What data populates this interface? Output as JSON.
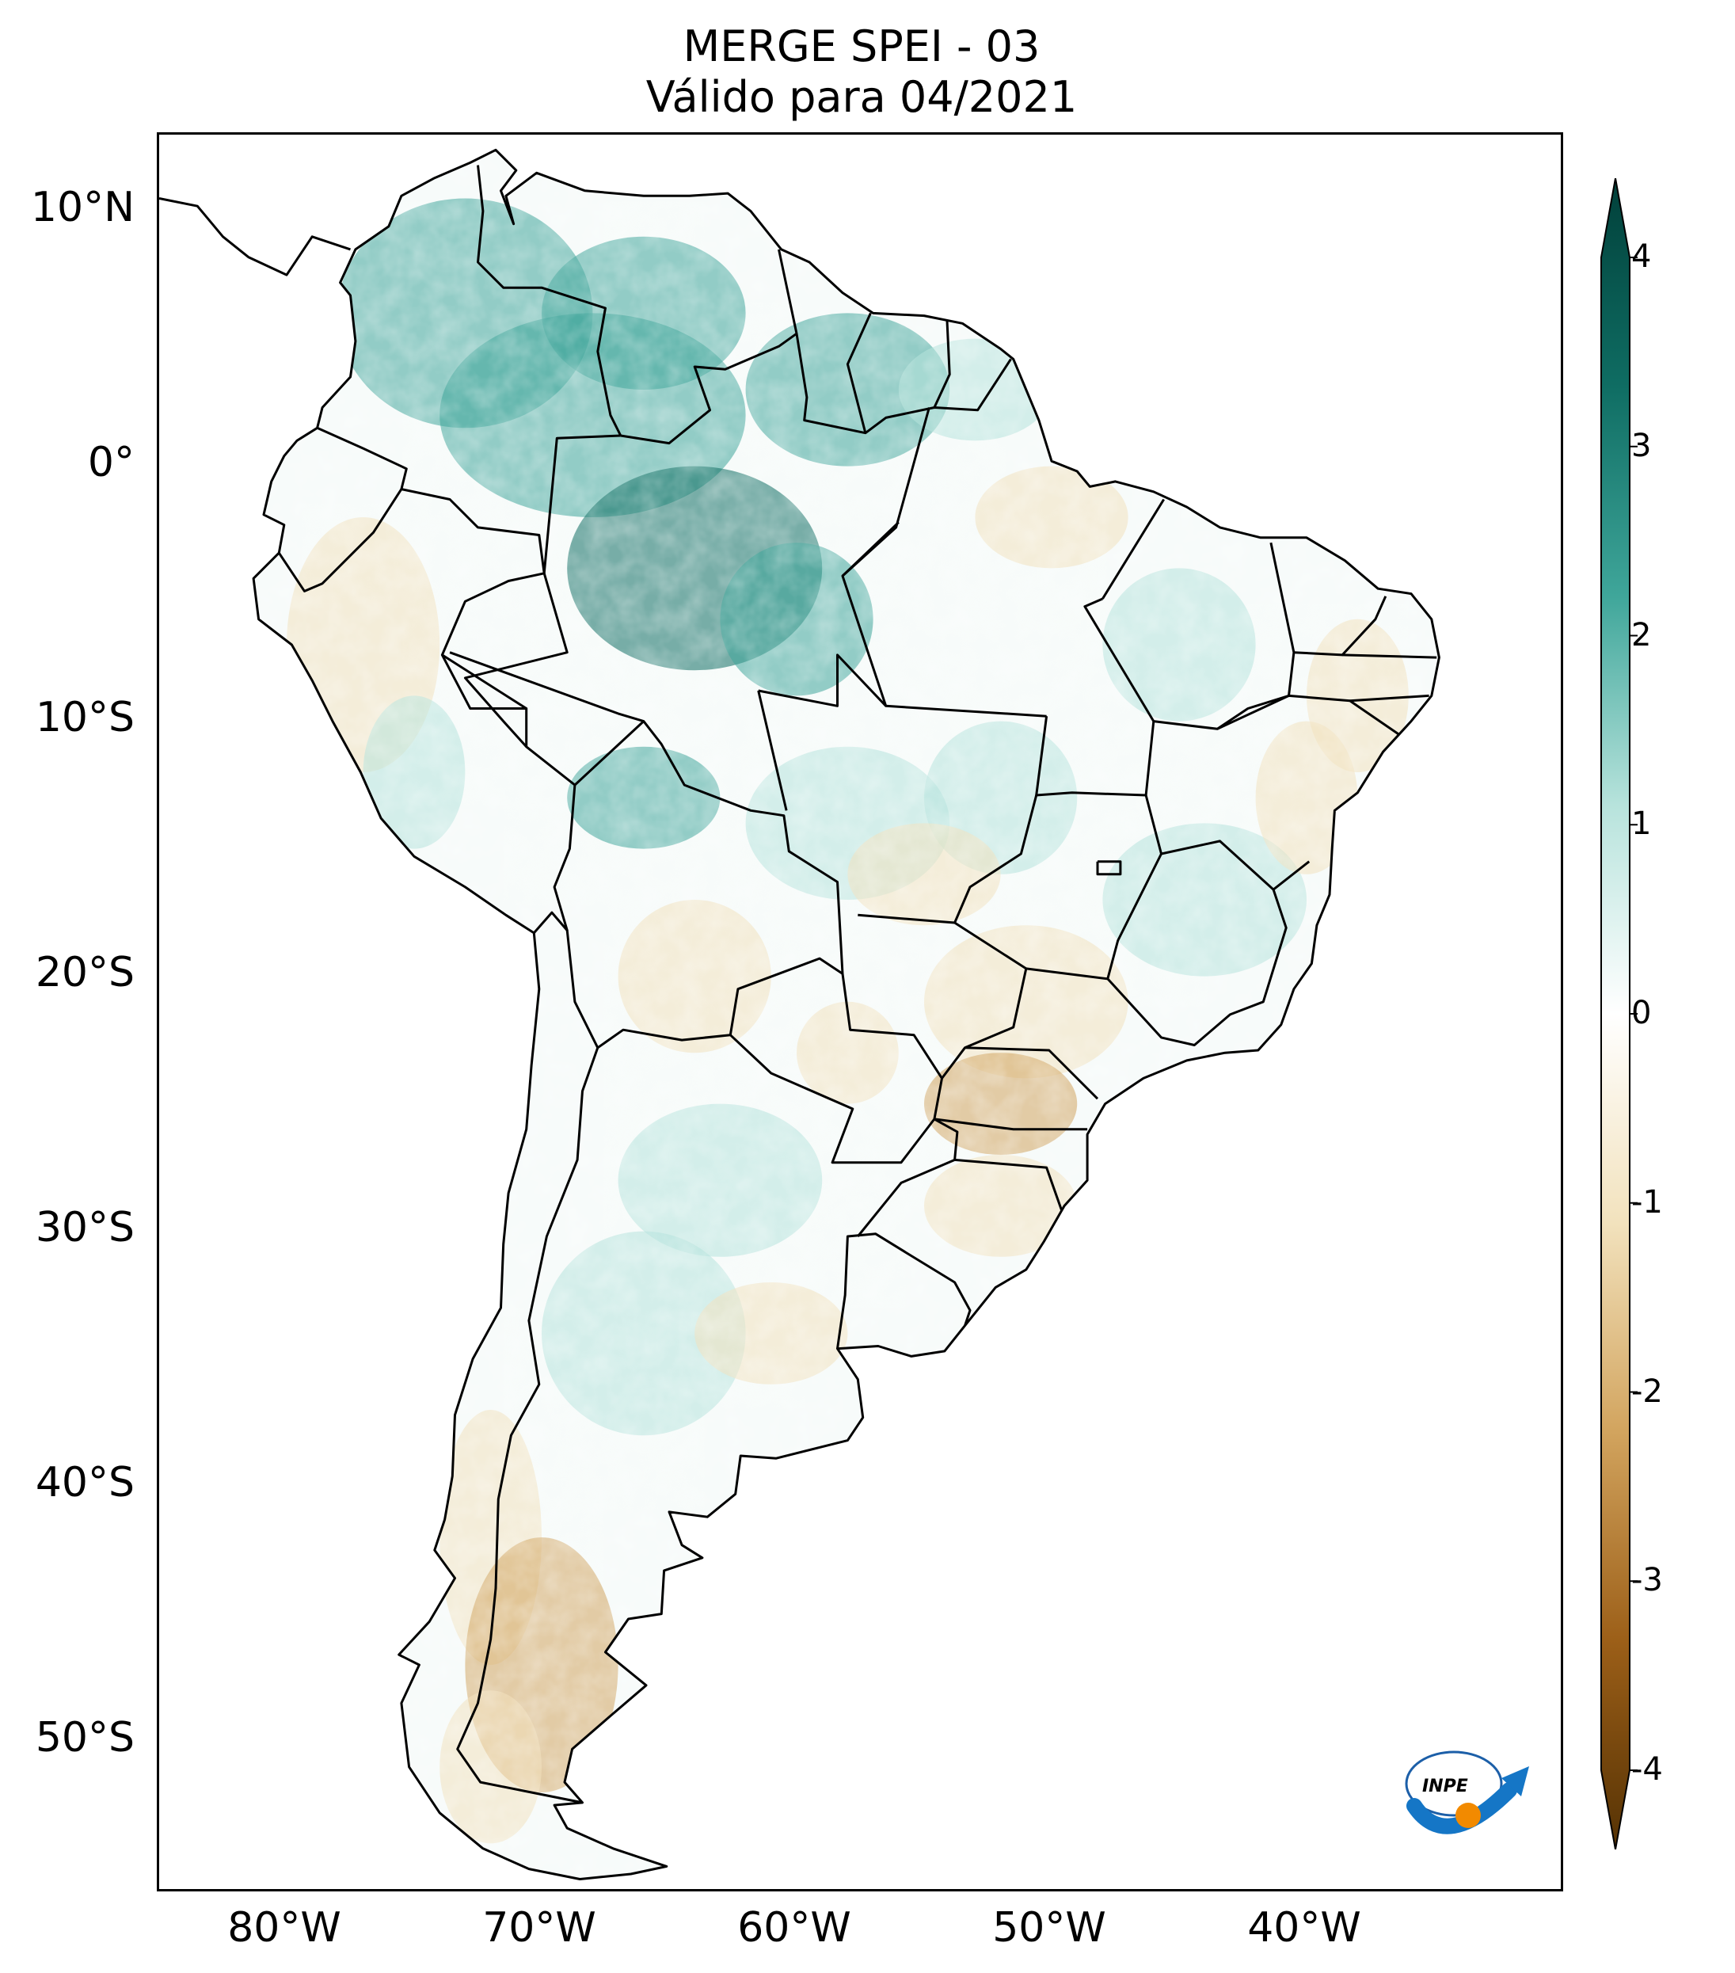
{
  "title_line1": "MERGE   SPEI - 03",
  "title_line2": "Válido para 04/2021",
  "lat_ticks": [
    {
      "label": "10°N",
      "lat": 10
    },
    {
      "label": "0°",
      "lat": 0
    },
    {
      "label": "10°S",
      "lat": -10
    },
    {
      "label": "20°S",
      "lat": -20
    },
    {
      "label": "30°S",
      "lat": -30
    },
    {
      "label": "40°S",
      "lat": -40
    },
    {
      "label": "50°S",
      "lat": -50
    }
  ],
  "lon_ticks": [
    {
      "label": "80°W",
      "lon": -80
    },
    {
      "label": "70°W",
      "lon": -70
    },
    {
      "label": "60°W",
      "lon": -60
    },
    {
      "label": "50°W",
      "lon": -50
    },
    {
      "label": "40°W",
      "lon": -40
    }
  ],
  "colorbar": {
    "min": -4,
    "max": 4,
    "ticks": [
      {
        "label": "4",
        "value": 4
      },
      {
        "label": "3",
        "value": 3
      },
      {
        "label": "2",
        "value": 2
      },
      {
        "label": "1",
        "value": 1
      },
      {
        "label": "0",
        "value": 0
      },
      {
        "label": "-1",
        "value": -1
      },
      {
        "label": "-2",
        "value": -2
      },
      {
        "label": "-3",
        "value": -3
      },
      {
        "label": "-4",
        "value": -4
      }
    ],
    "colors": {
      "4": "#01403a",
      "3": "#0f6d63",
      "2": "#3fa69a",
      "1": "#b7e3dc",
      "0": "#ffffff",
      "-1": "#f2e2bd",
      "-2": "#d2a45e",
      "-3": "#9c5f18",
      "-4": "#553204"
    }
  },
  "logo_text": "INPE"
}
